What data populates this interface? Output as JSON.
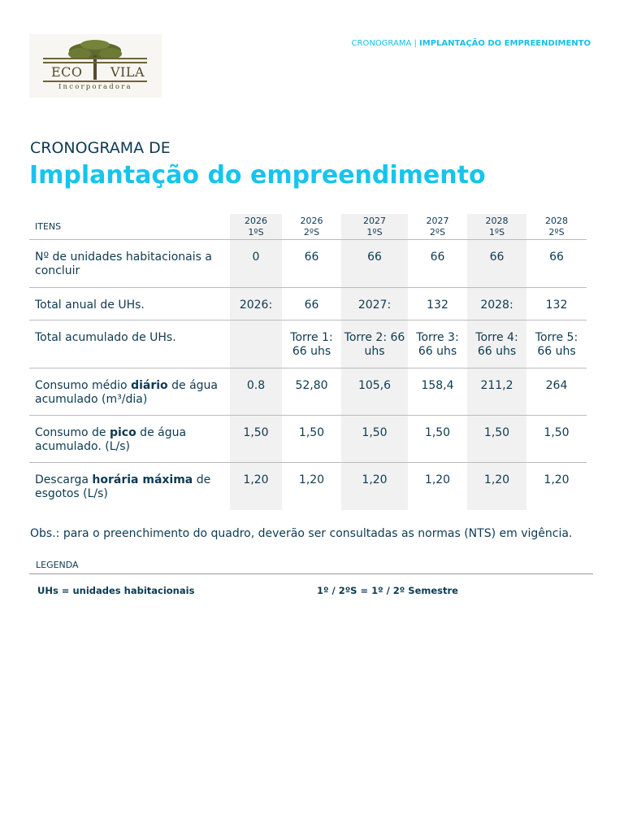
{
  "logo": {
    "left_word": "ECO",
    "right_word": "VILA",
    "sub": "Incorporadora"
  },
  "header": {
    "prefix": "CRONOGRAMA",
    "separator": "|",
    "highlight": "IMPLANTAÇÃO DO EMPREENDIMENTO"
  },
  "title": {
    "small": "CRONOGRAMA DE",
    "big": "Implantação do empreendimento"
  },
  "table": {
    "itens_label": "ITENS",
    "columns": [
      {
        "year": "2026",
        "sem": "1ºS",
        "shaded": true
      },
      {
        "year": "2026",
        "sem": "2ºS",
        "shaded": false
      },
      {
        "year": "2027",
        "sem": "1ºS",
        "shaded": true
      },
      {
        "year": "2027",
        "sem": "2ºS",
        "shaded": false
      },
      {
        "year": "2028",
        "sem": "1ºS",
        "shaded": true
      },
      {
        "year": "2028",
        "sem": "2ºS",
        "shaded": false
      }
    ],
    "rows": [
      {
        "label": [
          {
            "t": "Nº de unidades habitacionais a concluir"
          }
        ],
        "cells": [
          "0",
          "66",
          "66",
          "66",
          "66",
          "66"
        ]
      },
      {
        "label": [
          {
            "t": "Total anual de UHs."
          }
        ],
        "cells": [
          "2026:",
          "66",
          "2027:",
          "132",
          "2028:",
          "132"
        ]
      },
      {
        "label": [
          {
            "t": "Total acumulado de UHs."
          }
        ],
        "cells": [
          "",
          "Torre 1: 66 uhs",
          "Torre 2: 66 uhs",
          "Torre 3: 66 uhs",
          "Torre 4: 66 uhs",
          "Torre 5: 66 uhs"
        ]
      },
      {
        "label": [
          {
            "t": "Consumo médio "
          },
          {
            "t": "diário",
            "b": true
          },
          {
            "t": " de água acumulado (m³/dia)"
          }
        ],
        "cells": [
          "0.8",
          "52,80",
          "105,6",
          "158,4",
          "211,2",
          "264"
        ]
      },
      {
        "label": [
          {
            "t": "Consumo de "
          },
          {
            "t": "pico",
            "b": true
          },
          {
            "t": " de água acumulado. (L/s)"
          }
        ],
        "cells": [
          "1,50",
          "1,50",
          "1,50",
          "1,50",
          "1,50",
          "1,50"
        ]
      },
      {
        "label": [
          {
            "t": "Descarga "
          },
          {
            "t": "horária máxima",
            "b": true
          },
          {
            "t": " de esgotos (L/s)"
          }
        ],
        "cells": [
          "1,20",
          "1,20",
          "1,20",
          "1,20",
          "1,20",
          "1,20"
        ]
      }
    ]
  },
  "obs": "Obs.: para o preenchimento do quadro, deverão ser consultadas as normas (NTS) em vigência.",
  "legenda": {
    "label": "LEGENDA",
    "item1": "UHs = unidades habitacionais",
    "item2": "1º / 2ºS = 1º / 2º Semestre"
  },
  "chart_data": {
    "type": "table",
    "title": "Implantação do empreendimento",
    "columns": [
      "2026 1ºS",
      "2026 2ºS",
      "2027 1ºS",
      "2027 2ºS",
      "2028 1ºS",
      "2028 2ºS"
    ],
    "rows": [
      {
        "item": "Nº de unidades habitacionais a concluir",
        "values": [
          "0",
          "66",
          "66",
          "66",
          "66",
          "66"
        ]
      },
      {
        "item": "Total anual de UHs.",
        "values": [
          "2026:",
          "66",
          "2027:",
          "132",
          "2028:",
          "132"
        ]
      },
      {
        "item": "Total acumulado de UHs.",
        "values": [
          "",
          "Torre 1: 66 uhs",
          "Torre 2: 66 uhs",
          "Torre 3: 66 uhs",
          "Torre 4: 66 uhs",
          "Torre 5: 66 uhs"
        ]
      },
      {
        "item": "Consumo médio diário de água acumulado (m³/dia)",
        "values": [
          "0.8",
          "52,80",
          "105,6",
          "158,4",
          "211,2",
          "264"
        ]
      },
      {
        "item": "Consumo de pico de água acumulado. (L/s)",
        "values": [
          "1,50",
          "1,50",
          "1,50",
          "1,50",
          "1,50",
          "1,50"
        ]
      },
      {
        "item": "Descarga horária máxima de esgotos (L/s)",
        "values": [
          "1,20",
          "1,20",
          "1,20",
          "1,20",
          "1,20",
          "1,20"
        ]
      }
    ]
  }
}
